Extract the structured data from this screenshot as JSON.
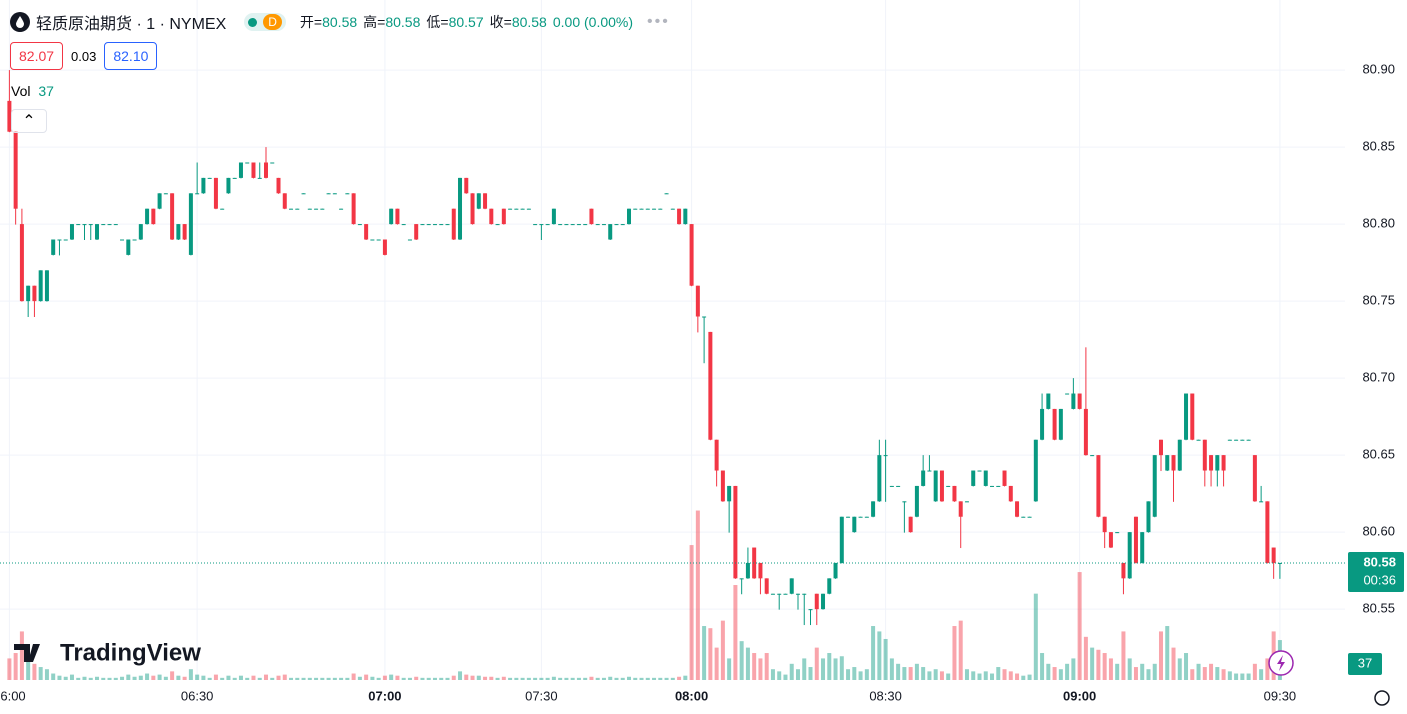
{
  "chart_data": {
    "type": "candlestick",
    "header": {
      "symbol": "轻质原油期货 · 1 · NYMEX",
      "interval_badge": "D",
      "ohlc": [
        {
          "label": "开=",
          "value": "80.58"
        },
        {
          "label": "高=",
          "value": "80.58"
        },
        {
          "label": "低=",
          "value": "80.57"
        },
        {
          "label": "收=",
          "value": "80.58"
        }
      ],
      "change": "0.00 (0.00%)",
      "bid": "82.07",
      "spread": "0.03",
      "ask": "82.10",
      "vol_label": "Vol"
    },
    "brand": "TradingView",
    "countdown": "00:36",
    "colors": {
      "up": "#089981",
      "down": "#f23645",
      "up_volume": "rgba(8,153,129,0.45)",
      "down_volume": "rgba(242,54,69,0.45)"
    },
    "ylim": [
      80.504,
      80.9455
    ],
    "yticks": [
      {
        "value": 80.9,
        "label": "80.90"
      },
      80.85,
      {
        "value": 80.8,
        "label": "80.80"
      },
      80.75,
      {
        "value": 80.7,
        "label": "80.70"
      },
      80.65,
      {
        "value": 80.6,
        "label": "80.60"
      },
      80.55
    ],
    "xlim": [
      -1.5,
      213.4
    ],
    "xticks": [
      {
        "value": 0,
        "label": "06:00"
      },
      {
        "value": 30,
        "label": "06:30"
      },
      {
        "value": 60,
        "label": "07:00"
      },
      {
        "value": 85,
        "label": "07:30"
      },
      {
        "value": 109,
        "label": "08:00"
      },
      {
        "value": 140,
        "label": "08:30"
      },
      {
        "value": 171,
        "label": "09:00"
      },
      {
        "value": 203,
        "label": "09:30"
      }
    ],
    "volume_lim": [
      0,
      630
    ],
    "grid": true,
    "ohlc": [
      [
        80.88,
        80.9,
        80.86,
        80.86
      ],
      [
        80.86,
        80.86,
        80.8,
        80.81
      ],
      [
        80.8,
        80.81,
        80.75,
        80.75
      ],
      [
        80.75,
        80.76,
        80.74,
        80.76
      ],
      [
        80.76,
        80.76,
        80.74,
        80.75
      ],
      [
        80.75,
        80.77,
        80.75,
        80.77
      ],
      [
        80.75,
        80.77,
        80.75,
        80.77
      ],
      [
        80.78,
        80.79,
        80.78,
        80.79
      ],
      [
        80.79,
        80.79,
        80.78,
        80.79
      ],
      [
        80.79,
        80.79,
        80.79,
        80.79
      ],
      [
        80.79,
        80.8,
        80.79,
        80.8
      ],
      [
        80.8,
        80.8,
        80.8,
        80.8
      ],
      [
        80.8,
        80.8,
        80.79,
        80.8
      ],
      [
        80.8,
        80.8,
        80.79,
        80.8
      ],
      [
        80.79,
        80.8,
        80.79,
        80.8
      ],
      [
        80.8,
        80.8,
        80.8,
        80.8
      ],
      [
        80.8,
        80.8,
        80.8,
        80.8
      ],
      [
        80.8,
        80.8,
        80.8,
        80.8
      ],
      [
        80.79,
        80.79,
        80.79,
        80.79
      ],
      [
        80.78,
        80.79,
        80.78,
        80.79
      ],
      [
        80.79,
        80.79,
        80.79,
        80.79
      ],
      [
        80.79,
        80.8,
        80.79,
        80.8
      ],
      [
        80.8,
        80.81,
        80.8,
        80.81
      ],
      [
        80.81,
        80.81,
        80.8,
        80.8
      ],
      [
        80.81,
        80.82,
        80.81,
        80.82
      ],
      [
        80.82,
        80.82,
        80.82,
        80.82
      ],
      [
        80.82,
        80.82,
        80.79,
        80.79
      ],
      [
        80.79,
        80.8,
        80.79,
        80.8
      ],
      [
        80.8,
        80.8,
        80.79,
        80.79
      ],
      [
        80.78,
        80.82,
        80.78,
        80.82
      ],
      [
        80.82,
        80.84,
        80.82,
        80.82
      ],
      [
        80.82,
        80.83,
        80.82,
        80.83
      ],
      [
        80.83,
        80.83,
        80.83,
        80.83
      ],
      [
        80.83,
        80.83,
        80.81,
        80.81
      ],
      [
        80.81,
        80.81,
        80.81,
        80.81
      ],
      [
        80.82,
        80.83,
        80.82,
        80.83
      ],
      [
        80.83,
        80.83,
        80.83,
        80.83
      ],
      [
        80.83,
        80.84,
        80.83,
        80.84
      ],
      [
        80.84,
        80.84,
        80.84,
        80.84
      ],
      [
        80.84,
        80.84,
        80.83,
        80.83
      ],
      [
        80.83,
        80.84,
        80.83,
        80.83
      ],
      [
        80.84,
        80.85,
        80.83,
        80.83
      ],
      [
        80.84,
        80.84,
        80.84,
        80.84
      ],
      [
        80.83,
        80.83,
        80.82,
        80.82
      ],
      [
        80.82,
        80.82,
        80.81,
        80.81
      ],
      [
        80.81,
        80.81,
        80.81,
        80.81
      ],
      [
        80.81,
        80.81,
        80.81,
        80.81
      ],
      [
        80.82,
        80.82,
        80.82,
        80.82
      ],
      [
        80.81,
        80.81,
        80.81,
        80.81
      ],
      [
        80.81,
        80.81,
        80.81,
        80.81
      ],
      [
        80.81,
        80.81,
        80.81,
        80.81
      ],
      [
        80.82,
        80.82,
        80.82,
        80.82
      ],
      [
        80.82,
        80.82,
        80.82,
        80.82
      ],
      [
        80.81,
        80.81,
        80.81,
        80.81
      ],
      [
        80.82,
        80.82,
        80.82,
        80.82
      ],
      [
        80.82,
        80.82,
        80.8,
        80.8
      ],
      [
        80.8,
        80.8,
        80.8,
        80.8
      ],
      [
        80.8,
        80.8,
        80.79,
        80.79
      ],
      [
        80.79,
        80.79,
        80.79,
        80.79
      ],
      [
        80.79,
        80.79,
        80.79,
        80.79
      ],
      [
        80.79,
        80.79,
        80.78,
        80.78
      ],
      [
        80.8,
        80.81,
        80.8,
        80.81
      ],
      [
        80.81,
        80.81,
        80.8,
        80.8
      ],
      [
        80.8,
        80.8,
        80.8,
        80.8
      ],
      [
        80.79,
        80.79,
        80.79,
        80.79
      ],
      [
        80.8,
        80.8,
        80.79,
        80.79
      ],
      [
        80.8,
        80.8,
        80.8,
        80.8
      ],
      [
        80.8,
        80.8,
        80.8,
        80.8
      ],
      [
        80.8,
        80.8,
        80.8,
        80.8
      ],
      [
        80.8,
        80.8,
        80.8,
        80.8
      ],
      [
        80.8,
        80.8,
        80.8,
        80.8
      ],
      [
        80.81,
        80.81,
        80.79,
        80.79
      ],
      [
        80.79,
        80.83,
        80.79,
        80.83
      ],
      [
        80.83,
        80.83,
        80.82,
        80.82
      ],
      [
        80.82,
        80.82,
        80.8,
        80.8
      ],
      [
        80.81,
        80.82,
        80.81,
        80.82
      ],
      [
        80.82,
        80.82,
        80.81,
        80.81
      ],
      [
        80.81,
        80.81,
        80.8,
        80.8
      ],
      [
        80.8,
        80.8,
        80.8,
        80.8
      ],
      [
        80.81,
        80.81,
        80.8,
        80.8
      ],
      [
        80.81,
        80.81,
        80.81,
        80.81
      ],
      [
        80.81,
        80.81,
        80.81,
        80.81
      ],
      [
        80.81,
        80.81,
        80.81,
        80.81
      ],
      [
        80.81,
        80.81,
        80.81,
        80.81
      ],
      [
        80.8,
        80.8,
        80.8,
        80.8
      ],
      [
        80.8,
        80.8,
        80.79,
        80.8
      ],
      [
        80.8,
        80.8,
        80.8,
        80.8
      ],
      [
        80.8,
        80.81,
        80.8,
        80.81
      ],
      [
        80.8,
        80.8,
        80.8,
        80.8
      ],
      [
        80.8,
        80.8,
        80.8,
        80.8
      ],
      [
        80.8,
        80.8,
        80.8,
        80.8
      ],
      [
        80.8,
        80.8,
        80.8,
        80.8
      ],
      [
        80.8,
        80.8,
        80.8,
        80.8
      ],
      [
        80.81,
        80.81,
        80.8,
        80.8
      ],
      [
        80.8,
        80.8,
        80.8,
        80.8
      ],
      [
        80.8,
        80.8,
        80.8,
        80.8
      ],
      [
        80.79,
        80.8,
        80.79,
        80.8
      ],
      [
        80.8,
        80.8,
        80.8,
        80.8
      ],
      [
        80.8,
        80.8,
        80.8,
        80.8
      ],
      [
        80.8,
        80.81,
        80.8,
        80.81
      ],
      [
        80.81,
        80.81,
        80.81,
        80.81
      ],
      [
        80.81,
        80.81,
        80.81,
        80.81
      ],
      [
        80.81,
        80.81,
        80.81,
        80.81
      ],
      [
        80.81,
        80.81,
        80.81,
        80.81
      ],
      [
        80.81,
        80.81,
        80.81,
        80.81
      ],
      [
        80.82,
        80.82,
        80.82,
        80.82
      ],
      [
        80.81,
        80.81,
        80.81,
        80.81
      ],
      [
        80.81,
        80.81,
        80.8,
        80.8
      ],
      [
        80.8,
        80.81,
        80.8,
        80.81
      ],
      [
        80.8,
        80.8,
        80.76,
        80.76
      ],
      [
        80.76,
        80.76,
        80.73,
        80.74
      ],
      [
        80.74,
        80.74,
        80.71,
        80.74
      ],
      [
        80.73,
        80.73,
        80.66,
        80.66
      ],
      [
        80.66,
        80.66,
        80.63,
        80.64
      ],
      [
        80.64,
        80.64,
        80.62,
        80.62
      ],
      [
        80.62,
        80.63,
        80.6,
        80.63
      ],
      [
        80.63,
        80.63,
        80.57,
        80.57
      ],
      [
        80.57,
        80.57,
        80.56,
        80.57
      ],
      [
        80.57,
        80.59,
        80.57,
        80.58
      ],
      [
        80.59,
        80.59,
        80.57,
        80.57
      ],
      [
        80.58,
        80.58,
        80.56,
        80.57
      ],
      [
        80.57,
        80.57,
        80.56,
        80.56
      ],
      [
        80.56,
        80.56,
        80.56,
        80.56
      ],
      [
        80.56,
        80.56,
        80.55,
        80.56
      ],
      [
        80.56,
        80.56,
        80.56,
        80.56
      ],
      [
        80.56,
        80.57,
        80.56,
        80.57
      ],
      [
        80.56,
        80.56,
        80.55,
        80.56
      ],
      [
        80.56,
        80.56,
        80.54,
        80.56
      ],
      [
        80.55,
        80.55,
        80.54,
        80.55
      ],
      [
        80.56,
        80.56,
        80.54,
        80.55
      ],
      [
        80.55,
        80.56,
        80.55,
        80.56
      ],
      [
        80.56,
        80.57,
        80.56,
        80.57
      ],
      [
        80.57,
        80.58,
        80.57,
        80.58
      ],
      [
        80.58,
        80.61,
        80.58,
        80.61
      ],
      [
        80.61,
        80.61,
        80.61,
        80.61
      ],
      [
        80.6,
        80.61,
        80.6,
        80.61
      ],
      [
        80.61,
        80.61,
        80.61,
        80.61
      ],
      [
        80.61,
        80.61,
        80.61,
        80.61
      ],
      [
        80.61,
        80.62,
        80.61,
        80.62
      ],
      [
        80.62,
        80.66,
        80.62,
        80.65
      ],
      [
        80.65,
        80.66,
        80.62,
        80.65
      ],
      [
        80.63,
        80.63,
        80.63,
        80.63
      ],
      [
        80.63,
        80.63,
        80.63,
        80.63
      ],
      [
        80.62,
        80.62,
        80.6,
        80.62
      ],
      [
        80.61,
        80.61,
        80.6,
        80.6
      ],
      [
        80.61,
        80.63,
        80.61,
        80.63
      ],
      [
        80.63,
        80.65,
        80.63,
        80.64
      ],
      [
        80.64,
        80.65,
        80.64,
        80.64
      ],
      [
        80.62,
        80.64,
        80.62,
        80.64
      ],
      [
        80.64,
        80.64,
        80.62,
        80.62
      ],
      [
        80.63,
        80.63,
        80.63,
        80.63
      ],
      [
        80.63,
        80.63,
        80.62,
        80.62
      ],
      [
        80.62,
        80.62,
        80.59,
        80.61
      ],
      [
        80.62,
        80.62,
        80.62,
        80.62
      ],
      [
        80.63,
        80.64,
        80.63,
        80.64
      ],
      [
        80.64,
        80.64,
        80.64,
        80.64
      ],
      [
        80.63,
        80.64,
        80.63,
        80.64
      ],
      [
        80.63,
        80.63,
        80.63,
        80.63
      ],
      [
        80.63,
        80.63,
        80.63,
        80.63
      ],
      [
        80.64,
        80.64,
        80.63,
        80.63
      ],
      [
        80.63,
        80.63,
        80.62,
        80.62
      ],
      [
        80.62,
        80.62,
        80.61,
        80.61
      ],
      [
        80.61,
        80.61,
        80.61,
        80.61
      ],
      [
        80.61,
        80.61,
        80.61,
        80.61
      ],
      [
        80.62,
        80.66,
        80.62,
        80.66
      ],
      [
        80.66,
        80.69,
        80.66,
        80.68
      ],
      [
        80.68,
        80.69,
        80.68,
        80.69
      ],
      [
        80.68,
        80.68,
        80.66,
        80.66
      ],
      [
        80.66,
        80.68,
        80.66,
        80.68
      ],
      [
        80.69,
        80.69,
        80.69,
        80.69
      ],
      [
        80.68,
        80.7,
        80.68,
        80.69
      ],
      [
        80.69,
        80.69,
        80.68,
        80.68
      ],
      [
        80.68,
        80.72,
        80.65,
        80.65
      ],
      [
        80.65,
        80.65,
        80.65,
        80.65
      ],
      [
        80.65,
        80.65,
        80.61,
        80.61
      ],
      [
        80.61,
        80.61,
        80.59,
        80.6
      ],
      [
        80.6,
        80.6,
        80.59,
        80.59
      ],
      [
        80.6,
        80.6,
        80.6,
        80.6
      ],
      [
        80.58,
        80.58,
        80.56,
        80.57
      ],
      [
        80.57,
        80.6,
        80.57,
        80.6
      ],
      [
        80.61,
        80.61,
        80.58,
        80.58
      ],
      [
        80.58,
        80.6,
        80.58,
        80.6
      ],
      [
        80.6,
        80.62,
        80.6,
        80.62
      ],
      [
        80.61,
        80.65,
        80.61,
        80.65
      ],
      [
        80.66,
        80.66,
        80.64,
        80.65
      ],
      [
        80.64,
        80.65,
        80.64,
        80.65
      ],
      [
        80.65,
        80.65,
        80.62,
        80.64
      ],
      [
        80.64,
        80.66,
        80.64,
        80.66
      ],
      [
        80.66,
        80.69,
        80.66,
        80.69
      ],
      [
        80.69,
        80.69,
        80.66,
        80.66
      ],
      [
        80.66,
        80.66,
        80.66,
        80.66
      ],
      [
        80.66,
        80.66,
        80.63,
        80.64
      ],
      [
        80.65,
        80.65,
        80.63,
        80.64
      ],
      [
        80.64,
        80.65,
        80.63,
        80.65
      ],
      [
        80.65,
        80.65,
        80.63,
        80.64
      ],
      [
        80.66,
        80.66,
        80.66,
        80.66
      ],
      [
        80.66,
        80.66,
        80.66,
        80.66
      ],
      [
        80.66,
        80.66,
        80.66,
        80.66
      ],
      [
        80.66,
        80.66,
        80.66,
        80.66
      ],
      [
        80.65,
        80.65,
        80.62,
        80.62
      ],
      [
        80.62,
        80.63,
        80.62,
        80.62
      ],
      [
        80.62,
        80.62,
        80.58,
        80.58
      ],
      [
        80.59,
        80.59,
        80.57,
        80.58
      ],
      [
        80.58,
        80.58,
        80.57,
        80.58
      ]
    ],
    "volume": [
      20,
      25,
      45,
      20,
      15,
      12,
      10,
      6,
      4,
      3,
      5,
      2,
      3,
      2,
      3,
      2,
      2,
      2,
      3,
      5,
      3,
      4,
      6,
      4,
      5,
      3,
      8,
      4,
      3,
      10,
      5,
      4,
      2,
      5,
      2,
      4,
      2,
      4,
      2,
      4,
      2,
      5,
      2,
      4,
      5,
      2,
      2,
      2,
      2,
      2,
      2,
      2,
      2,
      2,
      2,
      6,
      3,
      5,
      3,
      2,
      4,
      5,
      4,
      2,
      2,
      3,
      2,
      2,
      2,
      2,
      2,
      4,
      8,
      5,
      4,
      4,
      3,
      3,
      2,
      3,
      2,
      2,
      2,
      2,
      2,
      2,
      2,
      3,
      2,
      2,
      2,
      2,
      2,
      3,
      2,
      2,
      3,
      2,
      2,
      3,
      2,
      2,
      2,
      2,
      2,
      2,
      2,
      3,
      4,
      125,
      157,
      50,
      48,
      30,
      55,
      20,
      88,
      36,
      30,
      25,
      20,
      25,
      10,
      8,
      5,
      15,
      10,
      20,
      12,
      30,
      20,
      25,
      20,
      22,
      10,
      12,
      8,
      10,
      50,
      45,
      38,
      20,
      15,
      12,
      12,
      15,
      12,
      8,
      10,
      8,
      6,
      50,
      55,
      10,
      8,
      6,
      8,
      6,
      12,
      10,
      8,
      6,
      4,
      5,
      80,
      25,
      15,
      12,
      10,
      15,
      20,
      100,
      40,
      30,
      28,
      25,
      20,
      15,
      45,
      20,
      12,
      15,
      10,
      15,
      45,
      50,
      30,
      20,
      25,
      10,
      15,
      12,
      15,
      12,
      10,
      8,
      6,
      6,
      6,
      15,
      10,
      20,
      45,
      37
    ]
  }
}
